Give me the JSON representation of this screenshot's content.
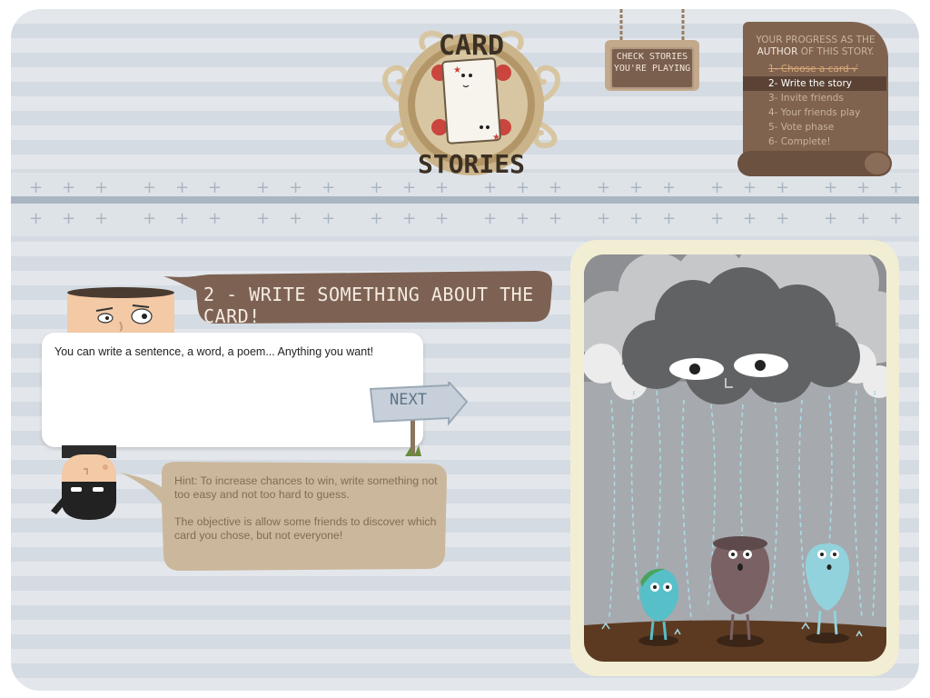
{
  "app": {
    "logo_line1": "CARD",
    "logo_line2": "STORIES"
  },
  "header": {
    "check_stories_line1": "CHECK STORIES",
    "check_stories_line2": "YOU'RE PLAYING"
  },
  "progress": {
    "title_part1": "YOUR PROGRESS AS THE",
    "title_author": "AUTHOR",
    "title_part2": "OF THIS STORY.",
    "steps": [
      {
        "label": "1- Choose a card √",
        "state": "done"
      },
      {
        "label": "2- Write the story",
        "state": "current"
      },
      {
        "label": "3- Invite friends",
        "state": "todo"
      },
      {
        "label": "4- Your friends play",
        "state": "todo"
      },
      {
        "label": "5- Vote phase",
        "state": "todo"
      },
      {
        "label": "6- Complete!",
        "state": "todo"
      }
    ]
  },
  "step": {
    "title": "2 - WRITE SOMETHING ABOUT THE CARD!",
    "input_value": "You can write a sentence, a word, a poem... Anything you want!",
    "next_label": "NEXT"
  },
  "hint": {
    "line1": "Hint: To increase chances to win, write something not too easy and not too hard to guess.",
    "line2": "The objective is allow some friends to discover which card you chose, but not everyone!"
  },
  "colors": {
    "brown": "#80634f",
    "dark_brown": "#5a4335",
    "tan": "#cbb89c",
    "card_frame": "#f2eed4",
    "stripe_light": "#e3e7ec",
    "stripe_dark": "#d5dbe2"
  }
}
